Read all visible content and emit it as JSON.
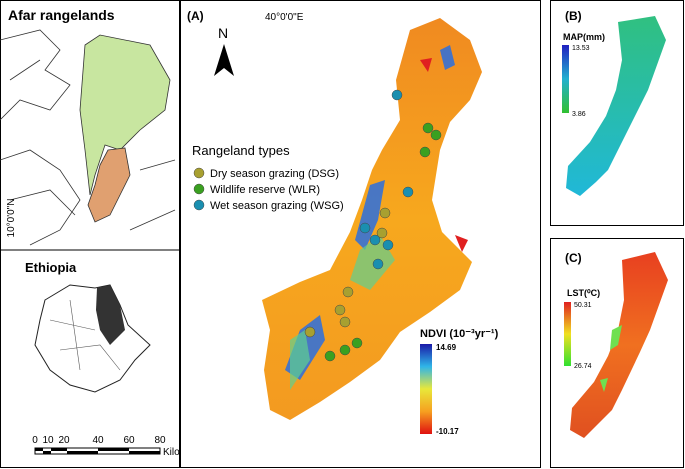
{
  "panel_left": {
    "title": "Afar rangelands",
    "lat_label": "10°0'0\"N",
    "inset_title": "Ethiopia",
    "scale_labels": [
      "0",
      "10",
      "20",
      "40",
      "60",
      "80"
    ],
    "scale_unit": "Kilometers"
  },
  "panel_a": {
    "label": "(A)",
    "lon_label": "40°0'0\"E",
    "north": "N",
    "legend": {
      "title": "Rangeland types",
      "items": [
        "Dry season grazing (DSG)",
        "Wildlife reserve (WLR)",
        "Wet season grazing (WSG)"
      ]
    },
    "colorbar": {
      "title": "NDVI (10⁻³yr⁻¹)",
      "max": "14.69",
      "min": "-10.17"
    }
  },
  "panel_b": {
    "label": "(B)",
    "colorbar": {
      "title": "MAP(mm)",
      "max": "13.53",
      "min": "3.86"
    }
  },
  "panel_c": {
    "label": "(C)",
    "colorbar": {
      "title": "LST(⁰C)",
      "max": "50.31",
      "min": "26.74"
    }
  }
}
